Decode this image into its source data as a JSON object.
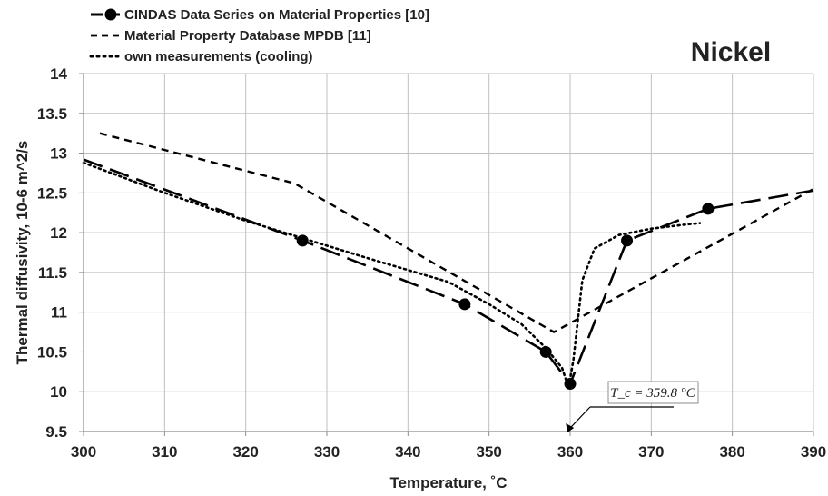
{
  "chart_data": {
    "type": "line",
    "title": "Nickel",
    "xlabel": "Temperature, ˚C",
    "ylabel": "Thermal diffusivity,  10-6 m^2/s",
    "xlim": [
      300,
      390
    ],
    "ylim": [
      9.5,
      14
    ],
    "x_ticks": [
      "300",
      "310",
      "320",
      "330",
      "340",
      "350",
      "360",
      "370",
      "380",
      "390"
    ],
    "y_ticks": [
      "9.5",
      "10",
      "10.5",
      "11",
      "11.5",
      "12",
      "12.5",
      "13",
      "13.5",
      "14"
    ],
    "grid": true,
    "legend_position": "top-left",
    "series": [
      {
        "name": "CINDAS Data Series on Material Properties [10]",
        "style": "long-dash with markers",
        "color": "#000000",
        "x": [
          300,
          327,
          347,
          357,
          360,
          367,
          377,
          390
        ],
        "y": [
          12.92,
          11.9,
          11.1,
          10.5,
          10.1,
          11.9,
          12.3,
          12.53
        ],
        "markers": [
          false,
          true,
          true,
          true,
          true,
          true,
          true,
          false
        ]
      },
      {
        "name": "Material Property Database MPDB [11]",
        "style": "short-dash",
        "color": "#000000",
        "x": [
          302,
          326,
          358,
          390
        ],
        "y": [
          13.25,
          12.62,
          10.75,
          12.55
        ]
      },
      {
        "name": "own measurements (cooling)",
        "style": "dotted",
        "color": "#000000",
        "x": [
          300,
          310,
          320,
          327,
          335,
          345,
          350,
          354,
          357,
          359,
          359.8,
          360.4,
          361.5,
          363,
          366,
          370,
          374,
          376
        ],
        "y": [
          12.88,
          12.5,
          12.15,
          11.93,
          11.68,
          11.38,
          11.1,
          10.85,
          10.55,
          10.3,
          10.05,
          10.4,
          11.4,
          11.8,
          11.97,
          12.05,
          12.1,
          12.12
        ]
      }
    ],
    "annotation": {
      "text": "T_c = 359.8 °C",
      "x": 359.8,
      "y": 9.5
    }
  }
}
